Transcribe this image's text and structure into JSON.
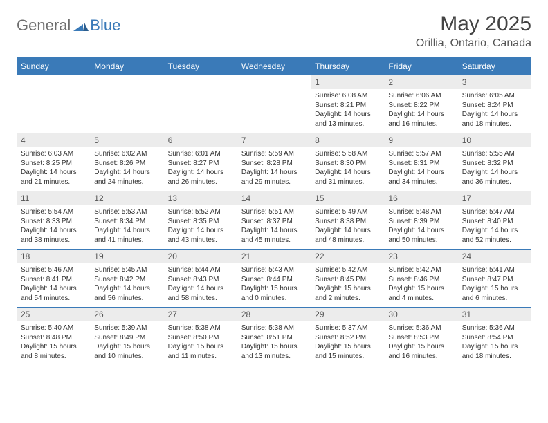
{
  "brand": {
    "general": "General",
    "blue": "Blue"
  },
  "title": "May 2025",
  "location": "Orillia, Ontario, Canada",
  "colors": {
    "accent": "#3a7ab8",
    "daynum_bg": "#ececec",
    "text": "#333333",
    "muted": "#6e6e6e"
  },
  "weekdays": [
    "Sunday",
    "Monday",
    "Tuesday",
    "Wednesday",
    "Thursday",
    "Friday",
    "Saturday"
  ],
  "weeks": [
    [
      null,
      null,
      null,
      null,
      {
        "n": "1",
        "sr": "Sunrise: 6:08 AM",
        "ss": "Sunset: 8:21 PM",
        "d1": "Daylight: 14 hours",
        "d2": "and 13 minutes."
      },
      {
        "n": "2",
        "sr": "Sunrise: 6:06 AM",
        "ss": "Sunset: 8:22 PM",
        "d1": "Daylight: 14 hours",
        "d2": "and 16 minutes."
      },
      {
        "n": "3",
        "sr": "Sunrise: 6:05 AM",
        "ss": "Sunset: 8:24 PM",
        "d1": "Daylight: 14 hours",
        "d2": "and 18 minutes."
      }
    ],
    [
      {
        "n": "4",
        "sr": "Sunrise: 6:03 AM",
        "ss": "Sunset: 8:25 PM",
        "d1": "Daylight: 14 hours",
        "d2": "and 21 minutes."
      },
      {
        "n": "5",
        "sr": "Sunrise: 6:02 AM",
        "ss": "Sunset: 8:26 PM",
        "d1": "Daylight: 14 hours",
        "d2": "and 24 minutes."
      },
      {
        "n": "6",
        "sr": "Sunrise: 6:01 AM",
        "ss": "Sunset: 8:27 PM",
        "d1": "Daylight: 14 hours",
        "d2": "and 26 minutes."
      },
      {
        "n": "7",
        "sr": "Sunrise: 5:59 AM",
        "ss": "Sunset: 8:28 PM",
        "d1": "Daylight: 14 hours",
        "d2": "and 29 minutes."
      },
      {
        "n": "8",
        "sr": "Sunrise: 5:58 AM",
        "ss": "Sunset: 8:30 PM",
        "d1": "Daylight: 14 hours",
        "d2": "and 31 minutes."
      },
      {
        "n": "9",
        "sr": "Sunrise: 5:57 AM",
        "ss": "Sunset: 8:31 PM",
        "d1": "Daylight: 14 hours",
        "d2": "and 34 minutes."
      },
      {
        "n": "10",
        "sr": "Sunrise: 5:55 AM",
        "ss": "Sunset: 8:32 PM",
        "d1": "Daylight: 14 hours",
        "d2": "and 36 minutes."
      }
    ],
    [
      {
        "n": "11",
        "sr": "Sunrise: 5:54 AM",
        "ss": "Sunset: 8:33 PM",
        "d1": "Daylight: 14 hours",
        "d2": "and 38 minutes."
      },
      {
        "n": "12",
        "sr": "Sunrise: 5:53 AM",
        "ss": "Sunset: 8:34 PM",
        "d1": "Daylight: 14 hours",
        "d2": "and 41 minutes."
      },
      {
        "n": "13",
        "sr": "Sunrise: 5:52 AM",
        "ss": "Sunset: 8:35 PM",
        "d1": "Daylight: 14 hours",
        "d2": "and 43 minutes."
      },
      {
        "n": "14",
        "sr": "Sunrise: 5:51 AM",
        "ss": "Sunset: 8:37 PM",
        "d1": "Daylight: 14 hours",
        "d2": "and 45 minutes."
      },
      {
        "n": "15",
        "sr": "Sunrise: 5:49 AM",
        "ss": "Sunset: 8:38 PM",
        "d1": "Daylight: 14 hours",
        "d2": "and 48 minutes."
      },
      {
        "n": "16",
        "sr": "Sunrise: 5:48 AM",
        "ss": "Sunset: 8:39 PM",
        "d1": "Daylight: 14 hours",
        "d2": "and 50 minutes."
      },
      {
        "n": "17",
        "sr": "Sunrise: 5:47 AM",
        "ss": "Sunset: 8:40 PM",
        "d1": "Daylight: 14 hours",
        "d2": "and 52 minutes."
      }
    ],
    [
      {
        "n": "18",
        "sr": "Sunrise: 5:46 AM",
        "ss": "Sunset: 8:41 PM",
        "d1": "Daylight: 14 hours",
        "d2": "and 54 minutes."
      },
      {
        "n": "19",
        "sr": "Sunrise: 5:45 AM",
        "ss": "Sunset: 8:42 PM",
        "d1": "Daylight: 14 hours",
        "d2": "and 56 minutes."
      },
      {
        "n": "20",
        "sr": "Sunrise: 5:44 AM",
        "ss": "Sunset: 8:43 PM",
        "d1": "Daylight: 14 hours",
        "d2": "and 58 minutes."
      },
      {
        "n": "21",
        "sr": "Sunrise: 5:43 AM",
        "ss": "Sunset: 8:44 PM",
        "d1": "Daylight: 15 hours",
        "d2": "and 0 minutes."
      },
      {
        "n": "22",
        "sr": "Sunrise: 5:42 AM",
        "ss": "Sunset: 8:45 PM",
        "d1": "Daylight: 15 hours",
        "d2": "and 2 minutes."
      },
      {
        "n": "23",
        "sr": "Sunrise: 5:42 AM",
        "ss": "Sunset: 8:46 PM",
        "d1": "Daylight: 15 hours",
        "d2": "and 4 minutes."
      },
      {
        "n": "24",
        "sr": "Sunrise: 5:41 AM",
        "ss": "Sunset: 8:47 PM",
        "d1": "Daylight: 15 hours",
        "d2": "and 6 minutes."
      }
    ],
    [
      {
        "n": "25",
        "sr": "Sunrise: 5:40 AM",
        "ss": "Sunset: 8:48 PM",
        "d1": "Daylight: 15 hours",
        "d2": "and 8 minutes."
      },
      {
        "n": "26",
        "sr": "Sunrise: 5:39 AM",
        "ss": "Sunset: 8:49 PM",
        "d1": "Daylight: 15 hours",
        "d2": "and 10 minutes."
      },
      {
        "n": "27",
        "sr": "Sunrise: 5:38 AM",
        "ss": "Sunset: 8:50 PM",
        "d1": "Daylight: 15 hours",
        "d2": "and 11 minutes."
      },
      {
        "n": "28",
        "sr": "Sunrise: 5:38 AM",
        "ss": "Sunset: 8:51 PM",
        "d1": "Daylight: 15 hours",
        "d2": "and 13 minutes."
      },
      {
        "n": "29",
        "sr": "Sunrise: 5:37 AM",
        "ss": "Sunset: 8:52 PM",
        "d1": "Daylight: 15 hours",
        "d2": "and 15 minutes."
      },
      {
        "n": "30",
        "sr": "Sunrise: 5:36 AM",
        "ss": "Sunset: 8:53 PM",
        "d1": "Daylight: 15 hours",
        "d2": "and 16 minutes."
      },
      {
        "n": "31",
        "sr": "Sunrise: 5:36 AM",
        "ss": "Sunset: 8:54 PM",
        "d1": "Daylight: 15 hours",
        "d2": "and 18 minutes."
      }
    ]
  ]
}
